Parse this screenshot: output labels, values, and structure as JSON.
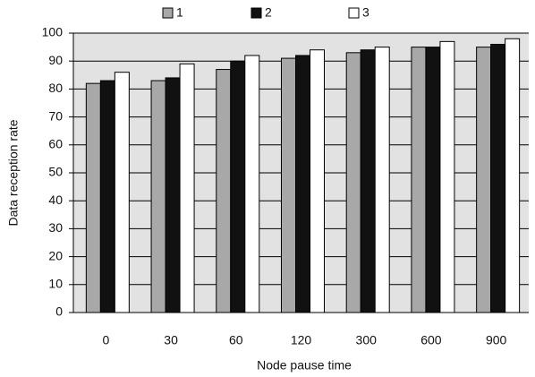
{
  "chart_data": {
    "type": "bar",
    "x_label": "Node pause time",
    "y_label": "Data reception rate",
    "categories": [
      "0",
      "30",
      "60",
      "120",
      "300",
      "600",
      "900"
    ],
    "series": [
      {
        "name": "1",
        "color": "#a8a8a8",
        "values": [
          82,
          83,
          87,
          91,
          93,
          95,
          95
        ]
      },
      {
        "name": "2",
        "color": "#111111",
        "values": [
          83,
          84,
          90,
          92,
          94,
          95,
          96
        ]
      },
      {
        "name": "3",
        "color": "#ffffff",
        "values": [
          86,
          89,
          92,
          94,
          95,
          97,
          98
        ]
      }
    ],
    "ylim": [
      0,
      100
    ],
    "yticks": [
      0,
      10,
      20,
      30,
      40,
      50,
      60,
      70,
      80,
      90,
      100
    ],
    "grid": true,
    "legend": "top"
  }
}
